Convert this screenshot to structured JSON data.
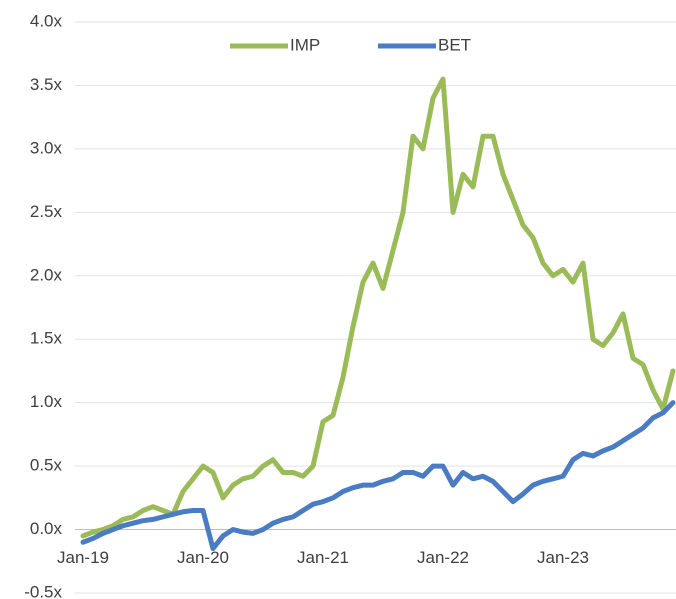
{
  "chart_data": {
    "type": "line",
    "categories": [
      "Jan-19",
      null,
      null,
      null,
      null,
      null,
      null,
      null,
      null,
      null,
      null,
      null,
      "Jan-20",
      null,
      null,
      null,
      null,
      null,
      null,
      null,
      null,
      null,
      null,
      null,
      "Jan-21",
      null,
      null,
      null,
      null,
      null,
      null,
      null,
      null,
      null,
      null,
      null,
      "Jan-22",
      null,
      null,
      null,
      null,
      null,
      null,
      null,
      null,
      null,
      null,
      null,
      "Jan-23",
      null,
      null,
      null,
      null,
      null,
      null,
      null,
      null,
      null,
      null,
      null
    ],
    "series": [
      {
        "name": "IMP",
        "color": "#9bbb59",
        "values": [
          -0.05,
          -0.02,
          0.0,
          0.03,
          0.08,
          0.1,
          0.15,
          0.18,
          0.15,
          0.12,
          0.3,
          0.4,
          0.5,
          0.45,
          0.25,
          0.35,
          0.4,
          0.42,
          0.5,
          0.55,
          0.45,
          0.45,
          0.42,
          0.5,
          0.85,
          0.9,
          1.2,
          1.6,
          1.95,
          2.1,
          1.9,
          2.2,
          2.5,
          3.1,
          3.0,
          3.4,
          3.55,
          2.5,
          2.8,
          2.7,
          3.1,
          3.1,
          2.8,
          2.6,
          2.4,
          2.3,
          2.1,
          2.0,
          2.05,
          1.95,
          2.1,
          1.5,
          1.45,
          1.55,
          1.7,
          1.35,
          1.3,
          1.1,
          0.95,
          1.25
        ]
      },
      {
        "name": "BET",
        "color": "#4a7cc4",
        "values": [
          -0.1,
          -0.07,
          -0.03,
          0.0,
          0.03,
          0.05,
          0.07,
          0.08,
          0.1,
          0.12,
          0.14,
          0.15,
          0.15,
          -0.15,
          -0.05,
          0.0,
          -0.02,
          -0.03,
          0.0,
          0.05,
          0.08,
          0.1,
          0.15,
          0.2,
          0.22,
          0.25,
          0.3,
          0.33,
          0.35,
          0.35,
          0.38,
          0.4,
          0.45,
          0.45,
          0.42,
          0.5,
          0.5,
          0.35,
          0.45,
          0.4,
          0.42,
          0.38,
          0.3,
          0.22,
          0.28,
          0.35,
          0.38,
          0.4,
          0.42,
          0.55,
          0.6,
          0.58,
          0.62,
          0.65,
          0.7,
          0.75,
          0.8,
          0.88,
          0.92,
          1.0
        ]
      }
    ],
    "ylim": [
      -0.5,
      4.0
    ],
    "yticks": [
      {
        "value": -0.5,
        "label": "-0.5x"
      },
      {
        "value": 0,
        "label": "0.0x"
      },
      {
        "value": 0.5,
        "label": "0.5x"
      },
      {
        "value": 1,
        "label": "1.0x"
      },
      {
        "value": 1.5,
        "label": "1.5x"
      },
      {
        "value": 2,
        "label": "2.0x"
      },
      {
        "value": 2.5,
        "label": "2.5x"
      },
      {
        "value": 3,
        "label": "3.0x"
      },
      {
        "value": 3.5,
        "label": "3.5x"
      },
      {
        "value": 4,
        "label": "4.0x"
      }
    ],
    "grid": true,
    "legend": "top"
  }
}
